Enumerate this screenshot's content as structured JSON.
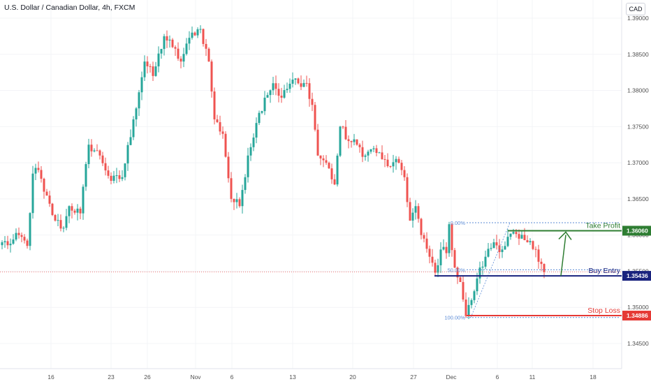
{
  "header": {
    "title": "U.S. Dollar / Canadian Dollar, 4h, FXCM",
    "currency_button": "CAD"
  },
  "chart_data": {
    "type": "candlestick",
    "symbol": "U.S. Dollar / Canadian Dollar",
    "timeframe": "4h",
    "source": "FXCM",
    "y_ticks": [
      "1.39000",
      "1.38500",
      "1.38000",
      "1.37500",
      "1.37000",
      "1.36500",
      "1.36000",
      "1.35500",
      "1.35000",
      "1.34500"
    ],
    "x_ticks": [
      "16",
      "23",
      "26",
      "Nov",
      "6",
      "13",
      "20",
      "27",
      "Dec",
      "6",
      "11",
      "18"
    ],
    "ylim": [
      1.3425,
      1.3905
    ],
    "current_price": 1.3549,
    "colors": {
      "up": "#26a69a",
      "down": "#ef5350",
      "take_profit": "#2e7d32",
      "buy_entry": "#1a237e",
      "stop_loss": "#e53935",
      "fib": "#5b8bd6"
    },
    "levels": [
      {
        "label": "Take Profit",
        "price": "1.36060",
        "value": 1.3606,
        "color": "#2e7d32"
      },
      {
        "label": "Buy Entry",
        "price": "1.35436",
        "value": 1.35436,
        "color": "#1a237e"
      },
      {
        "label": "Stop Loss",
        "price": "1.34886",
        "value": 1.34886,
        "color": "#e53935"
      }
    ],
    "fibonacci": [
      {
        "label": "0.00%",
        "value": 1.3617
      },
      {
        "label": "50.00%",
        "value": 1.3552
      },
      {
        "label": "100.00%",
        "value": 1.3486
      }
    ],
    "path_anchors": [
      {
        "t": 0,
        "p": 1.359
      },
      {
        "t": 3,
        "p": 1.3588
      },
      {
        "t": 6,
        "p": 1.36
      },
      {
        "t": 9,
        "p": 1.3585
      },
      {
        "t": 11,
        "p": 1.3685
      },
      {
        "t": 13,
        "p": 1.369
      },
      {
        "t": 15,
        "p": 1.366
      },
      {
        "t": 19,
        "p": 1.362
      },
      {
        "t": 22,
        "p": 1.361
      },
      {
        "t": 24,
        "p": 1.364
      },
      {
        "t": 28,
        "p": 1.363
      },
      {
        "t": 31,
        "p": 1.3725
      },
      {
        "t": 35,
        "p": 1.371
      },
      {
        "t": 39,
        "p": 1.3675
      },
      {
        "t": 43,
        "p": 1.368
      },
      {
        "t": 47,
        "p": 1.376
      },
      {
        "t": 51,
        "p": 1.384
      },
      {
        "t": 54,
        "p": 1.382
      },
      {
        "t": 58,
        "p": 1.3875
      },
      {
        "t": 61,
        "p": 1.386
      },
      {
        "t": 64,
        "p": 1.384
      },
      {
        "t": 68,
        "p": 1.388
      },
      {
        "t": 71,
        "p": 1.3885
      },
      {
        "t": 74,
        "p": 1.384
      },
      {
        "t": 76,
        "p": 1.376
      },
      {
        "t": 79,
        "p": 1.374
      },
      {
        "t": 82,
        "p": 1.365
      },
      {
        "t": 85,
        "p": 1.364
      },
      {
        "t": 88,
        "p": 1.371
      },
      {
        "t": 91,
        "p": 1.3755
      },
      {
        "t": 94,
        "p": 1.379
      },
      {
        "t": 97,
        "p": 1.381
      },
      {
        "t": 100,
        "p": 1.379
      },
      {
        "t": 104,
        "p": 1.3815
      },
      {
        "t": 107,
        "p": 1.3805
      },
      {
        "t": 109,
        "p": 1.381
      },
      {
        "t": 111,
        "p": 1.378
      },
      {
        "t": 113,
        "p": 1.371
      },
      {
        "t": 116,
        "p": 1.37
      },
      {
        "t": 119,
        "p": 1.367
      },
      {
        "t": 121,
        "p": 1.375
      },
      {
        "t": 124,
        "p": 1.373
      },
      {
        "t": 127,
        "p": 1.3725
      },
      {
        "t": 130,
        "p": 1.371
      },
      {
        "t": 133,
        "p": 1.372
      },
      {
        "t": 136,
        "p": 1.3705
      },
      {
        "t": 139,
        "p": 1.3695
      },
      {
        "t": 142,
        "p": 1.37
      },
      {
        "t": 144,
        "p": 1.368
      },
      {
        "t": 146,
        "p": 1.362
      },
      {
        "t": 148,
        "p": 1.364
      },
      {
        "t": 150,
        "p": 1.36
      },
      {
        "t": 153,
        "p": 1.357
      },
      {
        "t": 155,
        "p": 1.3548
      },
      {
        "t": 157,
        "p": 1.358
      },
      {
        "t": 159,
        "p": 1.3575
      },
      {
        "t": 160,
        "p": 1.3615
      },
      {
        "t": 162,
        "p": 1.3555
      },
      {
        "t": 164,
        "p": 1.3535
      },
      {
        "t": 166,
        "p": 1.3488
      },
      {
        "t": 168,
        "p": 1.351
      },
      {
        "t": 170,
        "p": 1.354
      },
      {
        "t": 173,
        "p": 1.357
      },
      {
        "t": 176,
        "p": 1.359
      },
      {
        "t": 179,
        "p": 1.358
      },
      {
        "t": 182,
        "p": 1.3602
      },
      {
        "t": 185,
        "p": 1.3595
      },
      {
        "t": 188,
        "p": 1.359
      },
      {
        "t": 191,
        "p": 1.358
      },
      {
        "t": 193,
        "p": 1.356
      },
      {
        "t": 194,
        "p": 1.3549
      }
    ]
  }
}
